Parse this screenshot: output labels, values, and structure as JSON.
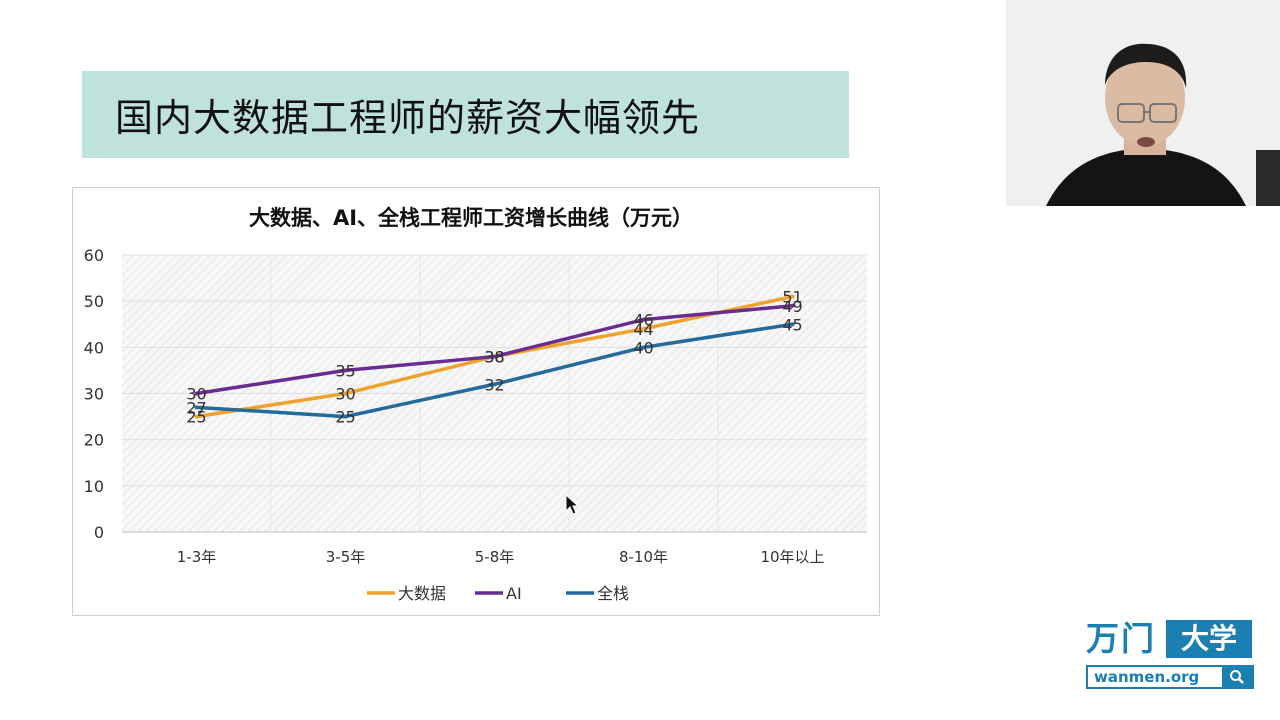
{
  "slide": {
    "title": "国内大数据工程师的薪资大幅领先"
  },
  "chart_data": {
    "type": "line",
    "title": "大数据、AI、全栈工程师工资增长曲线（万元）",
    "categories": [
      "1-3年",
      "3-5年",
      "5-8年",
      "8-10年",
      "10年以上"
    ],
    "ylim": [
      0,
      60
    ],
    "yticks": [
      "0",
      "10",
      "20",
      "30",
      "40",
      "50",
      "60"
    ],
    "grid": true,
    "legend": "bottom",
    "series": [
      {
        "name": "大数据",
        "values": [
          25,
          30,
          38,
          44,
          51
        ],
        "color": "#f0a22e"
      },
      {
        "name": "AI",
        "values": [
          30,
          35,
          38,
          46,
          49
        ],
        "color": "#6a2c91"
      },
      {
        "name": "全栈",
        "values": [
          27,
          25,
          32,
          40,
          45
        ],
        "color": "#246a9a"
      }
    ]
  },
  "logo": {
    "glyph": "万门",
    "badge": "大学",
    "url": "wanmen.org"
  },
  "icons": {
    "logo_search": "search-icon",
    "cursor": "cursor-arrow-icon"
  }
}
